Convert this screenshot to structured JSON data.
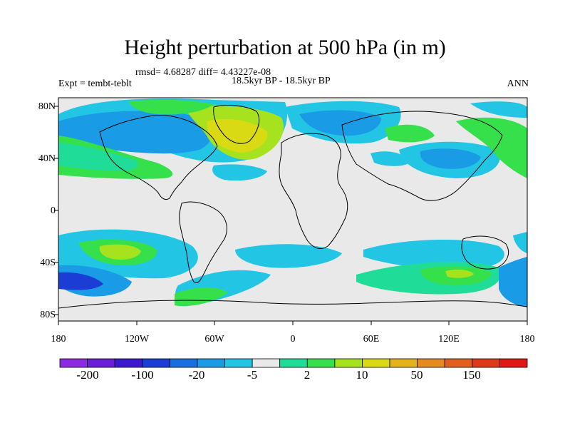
{
  "header": {
    "title": "Height perturbation at 500 hPa (in m)",
    "stats": "rmsd= 4.68287 diff= 4.43227e-08",
    "period": "18.5kyr BP - 18.5kyr BP",
    "experiment": "Expt = tembt-teblt",
    "season": "ANN"
  },
  "axes": {
    "lat_labels": [
      "80N",
      "40N",
      "0",
      "40S",
      "80S"
    ],
    "lon_labels": [
      "180",
      "120W",
      "60W",
      "0",
      "60E",
      "120E",
      "180"
    ]
  },
  "colorbar": {
    "labels": [
      "-200",
      "-100",
      "-20",
      "-5",
      "2",
      "10",
      "50",
      "150"
    ],
    "colors": [
      "#8a2be2",
      "#6a1fd6",
      "#3c18cf",
      "#1b3dd6",
      "#1a6fe0",
      "#1a9be6",
      "#22c6e4",
      "#e9e9e9",
      "#1fdc98",
      "#35e04a",
      "#a6e21e",
      "#d9da14",
      "#e4b21a",
      "#e58a1e",
      "#e2601c",
      "#de3a1a",
      "#e01818"
    ]
  },
  "colors": {
    "background_field": "#e9e9e9",
    "coastline": "#000000"
  }
}
